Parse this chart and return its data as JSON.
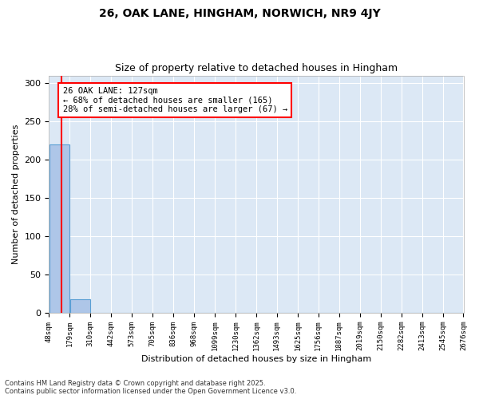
{
  "title1": "26, OAK LANE, HINGHAM, NORWICH, NR9 4JY",
  "title2": "Size of property relative to detached houses in Hingham",
  "xlabel": "Distribution of detached houses by size in Hingham",
  "ylabel": "Number of detached properties",
  "bin_edges": [
    48,
    179,
    310,
    442,
    573,
    705,
    836,
    968,
    1099,
    1230,
    1362,
    1493,
    1625,
    1756,
    1887,
    2019,
    2150,
    2282,
    2413,
    2545,
    2676
  ],
  "bar_heights": [
    220,
    18,
    0,
    0,
    0,
    0,
    0,
    0,
    0,
    0,
    0,
    0,
    0,
    0,
    0,
    0,
    0,
    0,
    0,
    0
  ],
  "bar_color": "#aec6e8",
  "bar_edgecolor": "#5a9fd4",
  "property_size": 127,
  "annotation_text": "26 OAK LANE: 127sqm\n← 68% of detached houses are smaller (165)\n28% of semi-detached houses are larger (67) →",
  "annotation_box_color": "white",
  "annotation_box_edgecolor": "red",
  "vline_x": 127,
  "vline_color": "red",
  "ylim": [
    0,
    310
  ],
  "yticks": [
    0,
    50,
    100,
    150,
    200,
    250,
    300
  ],
  "footnote": "Contains HM Land Registry data © Crown copyright and database right 2025.\nContains public sector information licensed under the Open Government Licence v3.0.",
  "plot_bg_color": "#dce8f5",
  "tick_labels": [
    "48sqm",
    "179sqm",
    "310sqm",
    "442sqm",
    "573sqm",
    "705sqm",
    "836sqm",
    "968sqm",
    "1099sqm",
    "1230sqm",
    "1362sqm",
    "1493sqm",
    "1625sqm",
    "1756sqm",
    "1887sqm",
    "2019sqm",
    "2150sqm",
    "2282sqm",
    "2413sqm",
    "2545sqm",
    "2676sqm"
  ]
}
